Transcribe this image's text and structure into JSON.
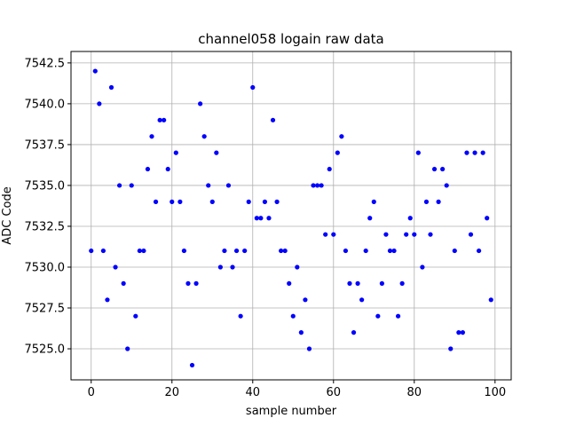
{
  "chart_data": {
    "type": "scatter",
    "title": "channel058 logain raw data",
    "xlabel": "sample number",
    "ylabel": "ADC Code",
    "xlim": [
      -5,
      104
    ],
    "ylim": [
      7523.1,
      7543.2
    ],
    "xticks": [
      "0",
      "20",
      "40",
      "60",
      "80",
      "100"
    ],
    "xtick_values": [
      0,
      20,
      40,
      60,
      80,
      100
    ],
    "yticks": [
      "7525.0",
      "7527.5",
      "7530.0",
      "7532.5",
      "7535.0",
      "7537.5",
      "7540.0",
      "7542.5"
    ],
    "ytick_values": [
      7525.0,
      7527.5,
      7530.0,
      7532.5,
      7535.0,
      7537.5,
      7540.0,
      7542.5
    ],
    "grid": true,
    "legend": false,
    "marker_color": "#0000ff",
    "series": [
      {
        "x": [
          0,
          1,
          2,
          3,
          4,
          5,
          6,
          7,
          8,
          9,
          10,
          11,
          12,
          13,
          14,
          15,
          16,
          17,
          18,
          19,
          20,
          21,
          22,
          23,
          24,
          25,
          26,
          27,
          28,
          29,
          30,
          31,
          32,
          33,
          34,
          35,
          36,
          37,
          38,
          39,
          40,
          41,
          42,
          43,
          44,
          45,
          46,
          47,
          48,
          49,
          50,
          51,
          52,
          53,
          54,
          55,
          56,
          57,
          58,
          59,
          60,
          61,
          62,
          63,
          64,
          65,
          66,
          67,
          68,
          69,
          70,
          71,
          72,
          73,
          74,
          75,
          76,
          77,
          78,
          79,
          80,
          81,
          82,
          83,
          84,
          85,
          86,
          87,
          88,
          89,
          90,
          91,
          92,
          93,
          94,
          95,
          96,
          97,
          98,
          99
        ],
        "y": [
          7531,
          7542,
          7540,
          7531,
          7528,
          7541,
          7530,
          7535,
          7529,
          7525,
          7535,
          7527,
          7531,
          7531,
          7536,
          7538,
          7534,
          7539,
          7539,
          7536,
          7534,
          7537,
          7534,
          7531,
          7529,
          7524,
          7529,
          7540,
          7538,
          7535,
          7534,
          7537,
          7530,
          7531,
          7535,
          7530,
          7531,
          7527,
          7531,
          7534,
          7541,
          7533,
          7533,
          7534,
          7533,
          7539,
          7534,
          7531,
          7531,
          7529,
          7527,
          7530,
          7526,
          7528,
          7525,
          7535,
          7535,
          7535,
          7532,
          7536,
          7532,
          7537,
          7538,
          7531,
          7529,
          7526,
          7529,
          7528,
          7531,
          7533,
          7534,
          7527,
          7529,
          7532,
          7531,
          7531,
          7527,
          7529,
          7532,
          7533,
          7532,
          7537,
          7530,
          7534,
          7532,
          7536,
          7534,
          7536,
          7535,
          7525,
          7531,
          7526,
          7526,
          7537,
          7532,
          7537,
          7531,
          7537,
          7533,
          7528
        ]
      }
    ]
  }
}
